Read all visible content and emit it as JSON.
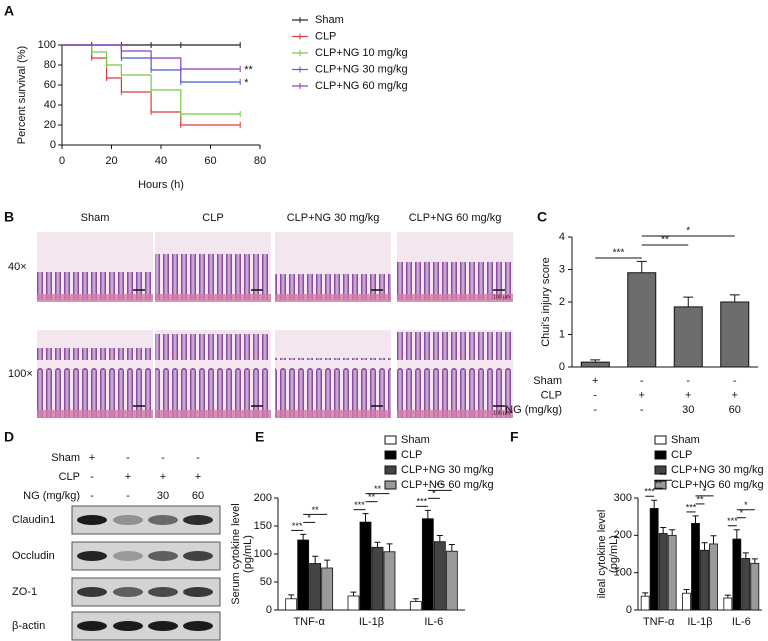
{
  "panel_labels": [
    "A",
    "B",
    "C",
    "D",
    "E",
    "F"
  ],
  "chart_data": [
    {
      "type": "step",
      "y_label": "Percent survival (%)",
      "x_label": "Hours (h)",
      "xlim": [
        0,
        80
      ],
      "xticks": [
        0,
        20,
        40,
        60,
        80
      ],
      "ylim": [
        0,
        100
      ],
      "yticks": [
        0,
        20,
        40,
        60,
        80,
        100
      ],
      "series": [
        {
          "name": "Sham",
          "color": "#222222",
          "x": [
            0,
            12,
            24,
            36,
            48,
            72
          ],
          "values": [
            100,
            100,
            100,
            100,
            100,
            100
          ]
        },
        {
          "name": "CLP",
          "color": "#e03a3a",
          "x": [
            0,
            12,
            18,
            24,
            36,
            48,
            72
          ],
          "values": [
            100,
            87,
            67,
            53,
            33,
            20,
            20
          ]
        },
        {
          "name": "CLP+NG 10 mg/kg",
          "color": "#7ac943",
          "x": [
            0,
            12,
            18,
            24,
            36,
            48,
            72
          ],
          "values": [
            100,
            93,
            80,
            70,
            55,
            31,
            31
          ]
        },
        {
          "name": "CLP+NG 30 mg/kg",
          "color": "#4a5bd4",
          "x": [
            0,
            24,
            36,
            48,
            72
          ],
          "values": [
            100,
            87,
            75,
            63,
            63
          ]
        },
        {
          "name": "CLP+NG 60 mg/kg",
          "color": "#8b3fc4",
          "x": [
            0,
            24,
            36,
            48,
            72
          ],
          "values": [
            100,
            94,
            87,
            76,
            76
          ]
        }
      ],
      "annotations": [
        "**",
        "*"
      ]
    },
    {
      "type": "bar",
      "y_label": "Chui's injury score",
      "color": "#6d6d6d",
      "ylim": [
        0,
        4
      ],
      "yticks": [
        0,
        1,
        2,
        3,
        4
      ],
      "values": [
        0.15,
        2.9,
        1.85,
        2.0
      ],
      "errors": [
        0.07,
        0.35,
        0.3,
        0.22
      ],
      "conditions": [
        {
          "label": "Sham",
          "values": [
            "+",
            "-",
            "-",
            "-"
          ]
        },
        {
          "label": "CLP",
          "values": [
            "-",
            "+",
            "+",
            "+"
          ]
        },
        {
          "label": "NG (mg/kg)",
          "values": [
            "-",
            "-",
            "30",
            "60"
          ]
        }
      ],
      "significance": [
        "***",
        "**",
        "*"
      ]
    },
    {
      "type": "grouped_bar",
      "y_label": [
        "Serum cytokine level",
        "(pg/mL)"
      ],
      "categories": [
        "TNF-α",
        "IL-1β",
        "IL-6"
      ],
      "ylim": [
        0,
        200
      ],
      "yticks": [
        0,
        50,
        100,
        150,
        200
      ],
      "series": [
        {
          "name": "Sham",
          "color": "#ffffff",
          "values": [
            20,
            25,
            15
          ],
          "errors": [
            7,
            7,
            5
          ]
        },
        {
          "name": "CLP",
          "color": "#000000",
          "values": [
            125,
            157,
            163
          ],
          "errors": [
            10,
            15,
            15
          ]
        },
        {
          "name": "CLP+NG 30 mg/kg",
          "color": "#444444",
          "values": [
            83,
            112,
            122
          ],
          "errors": [
            13,
            9,
            11
          ]
        },
        {
          "name": "CLP+NG 60 mg/kg",
          "color": "#9a9a9a",
          "values": [
            75,
            104,
            105
          ],
          "errors": [
            14,
            14,
            12
          ]
        }
      ],
      "significance": [
        [
          "***",
          "*",
          "**"
        ],
        [
          "***",
          "**",
          "**"
        ],
        [
          "***",
          "*",
          "**"
        ]
      ]
    },
    {
      "type": "grouped_bar",
      "y_label": [
        "ileal cytokine level",
        "(pg/mL)"
      ],
      "categories": [
        "TNF-α",
        "IL-1β",
        "IL-6"
      ],
      "ylim": [
        0,
        300
      ],
      "yticks": [
        0,
        100,
        200,
        300
      ],
      "series": [
        {
          "name": "Sham",
          "color": "#ffffff",
          "values": [
            37,
            45,
            32
          ],
          "errors": [
            9,
            10,
            8
          ]
        },
        {
          "name": "CLP",
          "color": "#000000",
          "values": [
            272,
            232,
            190
          ],
          "errors": [
            22,
            20,
            25
          ]
        },
        {
          "name": "CLP+NG 30 mg/kg",
          "color": "#444444",
          "values": [
            205,
            160,
            138
          ],
          "errors": [
            16,
            20,
            15
          ]
        },
        {
          "name": "CLP+NG 60 mg/kg",
          "color": "#9a9a9a",
          "values": [
            200,
            177,
            125
          ],
          "errors": [
            15,
            22,
            12
          ]
        }
      ],
      "significance": [
        [
          "***",
          "**",
          "**"
        ],
        [
          "***",
          "**",
          "*"
        ],
        [
          "***",
          "*",
          "*"
        ]
      ]
    }
  ],
  "histology": {
    "columns": [
      "Sham",
      "CLP",
      "CLP+NG 30 mg/kg",
      "CLP+NG 60 mg/kg"
    ],
    "rows": [
      "40×",
      "100×"
    ],
    "scale_bar": "100 μm"
  },
  "blot": {
    "conditions": [
      {
        "label": "Sham",
        "values": [
          "+",
          "-",
          "-",
          "-"
        ]
      },
      {
        "label": "CLP",
        "values": [
          "-",
          "+",
          "+",
          "+"
        ]
      },
      {
        "label": "NG (mg/kg)",
        "values": [
          "-",
          "-",
          "30",
          "60"
        ]
      }
    ],
    "bands": [
      "Claudin1",
      "Occludin",
      "ZO-1",
      "β-actin"
    ]
  }
}
